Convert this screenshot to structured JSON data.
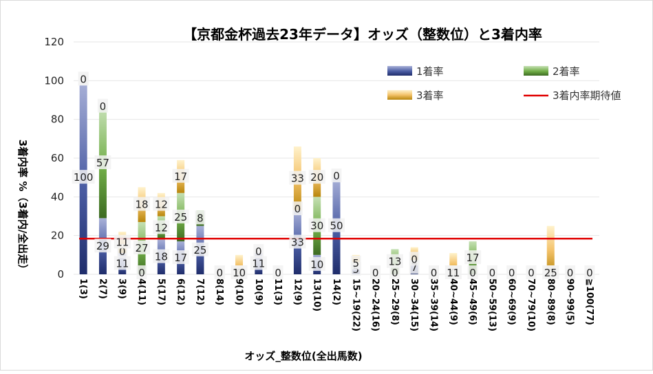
{
  "chart_data": {
    "type": "bar",
    "title": "【京都金杯過去23年データ】オッズ（整数位）と3着内率",
    "xlabel": "オッズ_整数位(全出馬数)",
    "ylabel": "3着内率 %（3着内/全出走）",
    "ylim": [
      0,
      120
    ],
    "yticks": [
      0,
      20,
      40,
      60,
      80,
      100,
      120
    ],
    "categories": [
      "1(3)",
      "2(7)",
      "3(9)",
      "4(11)",
      "5(17)",
      "6(12)",
      "7(12)",
      "8(14)",
      "9(10)",
      "10(9)",
      "11(3)",
      "12(9)",
      "13(10)",
      "14(2)",
      "15~19(22)",
      "20~24(16)",
      "25~29(8)",
      "30~34(15)",
      "35~39(14)",
      "40~44(9)",
      "45~49(6)",
      "50~59(13)",
      "60~69(9)",
      "70~79(10)",
      "80~89(8)",
      "90~99(5)",
      "≧100(77)"
    ],
    "series": [
      {
        "name": "1着率",
        "color": "#4a5ca3",
        "values": [
          100,
          29,
          11,
          0,
          18,
          17,
          25,
          0,
          0,
          11,
          0,
          33,
          10,
          50,
          5,
          0,
          0,
          7,
          0,
          0,
          0,
          0,
          0,
          0,
          0,
          0,
          0
        ]
      },
      {
        "name": "2着率",
        "color": "#70ad47",
        "values": [
          0,
          57,
          0,
          27,
          12,
          25,
          8,
          0,
          0,
          0,
          0,
          0,
          30,
          0,
          0,
          0,
          13,
          0,
          0,
          0,
          17,
          0,
          0,
          0,
          0,
          0,
          0
        ]
      },
      {
        "name": "3着率",
        "color": "#f4c36b",
        "values": [
          0,
          0,
          11,
          18,
          12,
          17,
          0,
          0,
          10,
          0,
          0,
          33,
          20,
          0,
          5,
          0,
          0,
          7,
          0,
          11,
          0,
          0,
          0,
          0,
          25,
          0,
          0
        ]
      }
    ],
    "expected_line": {
      "name": "3着内率期待値",
      "value": 18.4,
      "color": "#e00000"
    },
    "labels": [
      [
        "100",
        "0",
        "0"
      ],
      [
        "29",
        "57",
        "0"
      ],
      [
        "11",
        "0",
        "11"
      ],
      [
        "0",
        "27",
        "18"
      ],
      [
        "18",
        "12",
        "12"
      ],
      [
        "17",
        "25",
        "17"
      ],
      [
        "25",
        "8",
        ""
      ],
      [
        "0",
        "0",
        ""
      ],
      [
        "0",
        "10",
        ""
      ],
      [
        "11",
        "0",
        ""
      ],
      [
        "0",
        "",
        ""
      ],
      [
        "33",
        "0",
        "33"
      ],
      [
        "10",
        "30",
        "20"
      ],
      [
        "50",
        "0",
        ""
      ],
      [
        "5",
        "5",
        ""
      ],
      [
        "0",
        "0",
        ""
      ],
      [
        "0",
        "13",
        ""
      ],
      [
        "7",
        "0",
        ""
      ],
      [
        "0",
        "0",
        ""
      ],
      [
        "0",
        "11",
        ""
      ],
      [
        "0",
        "17",
        ""
      ],
      [
        "0",
        "",
        ""
      ],
      [
        "0",
        "",
        ""
      ],
      [
        "0",
        "",
        ""
      ],
      [
        "0",
        "25",
        ""
      ],
      [
        "0",
        "",
        ""
      ],
      [
        "0",
        "",
        ""
      ]
    ]
  }
}
